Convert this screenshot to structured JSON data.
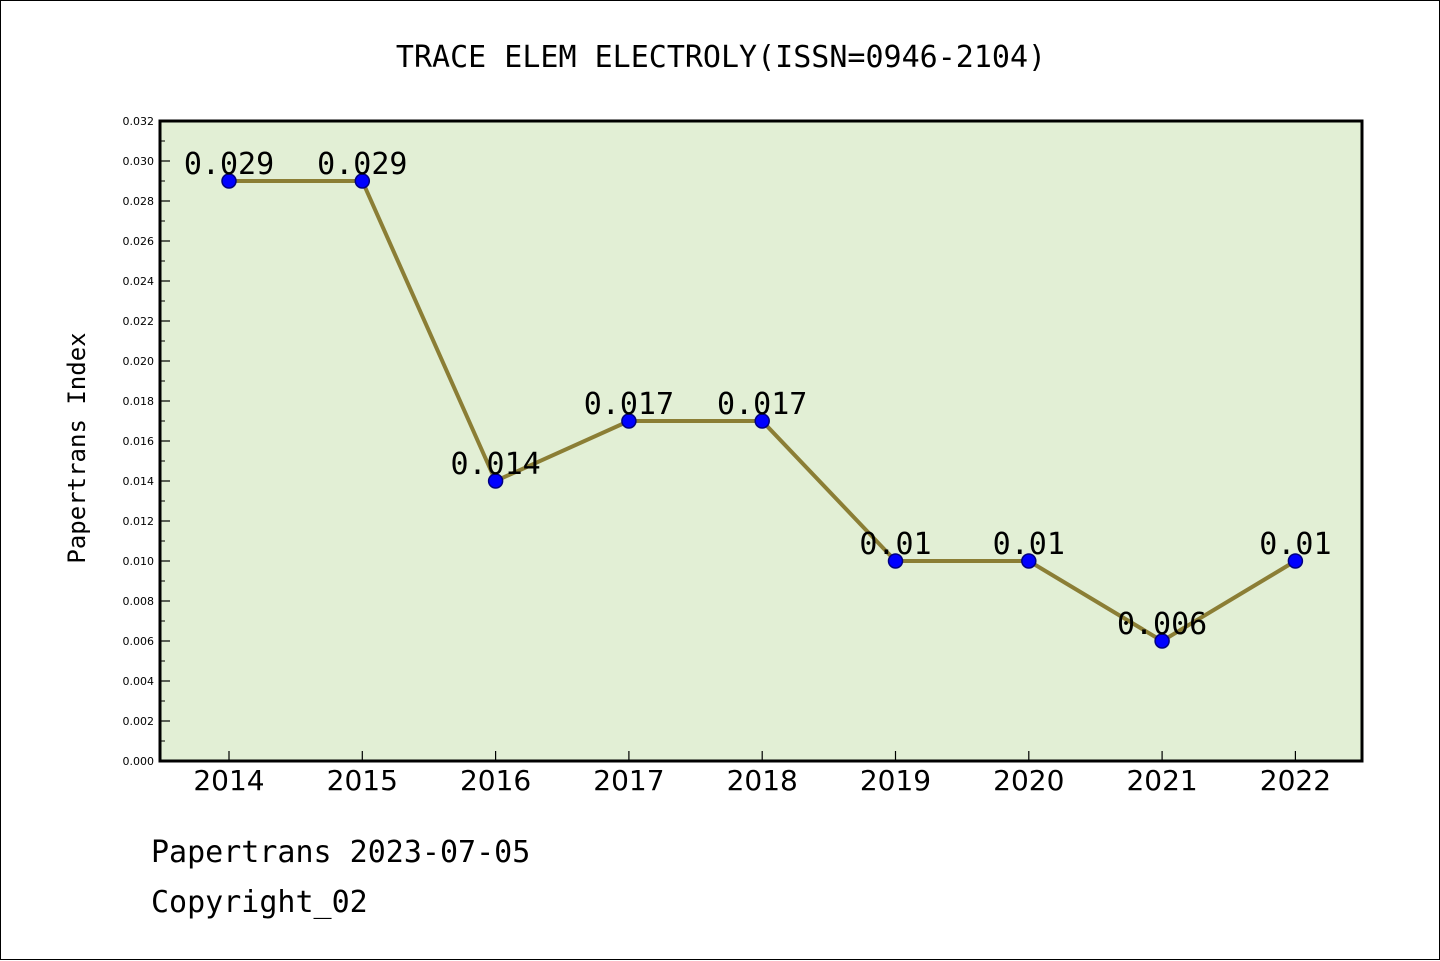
{
  "chart_data": {
    "type": "line",
    "title": "TRACE ELEM ELECTROLY(ISSN=0946-2104)",
    "xlabel": "",
    "ylabel": "Papertrans Index",
    "categories": [
      "2014",
      "2015",
      "2016",
      "2017",
      "2018",
      "2019",
      "2020",
      "2021",
      "2022"
    ],
    "series": [
      {
        "values": [
          0.029,
          0.029,
          0.014,
          0.017,
          0.017,
          0.01,
          0.01,
          0.006,
          0.01
        ],
        "labels": [
          "0.029",
          "0.029",
          "0.014",
          "0.017",
          "0.017",
          "0.01",
          "0.01",
          "0.006",
          "0.01"
        ]
      }
    ],
    "ylim": [
      0,
      0.032
    ],
    "yticks": [
      "0.000",
      "0.002",
      "0.004",
      "0.006",
      "0.008",
      "0.010",
      "0.012",
      "0.014",
      "0.016",
      "0.018",
      "0.020",
      "0.022",
      "0.024",
      "0.026",
      "0.028",
      "0.030",
      "0.032"
    ],
    "grid": false,
    "legend": "none",
    "colors": {
      "plot_background": "#e2efd5",
      "line": "#8b7e35",
      "marker_fill": "#0000ff",
      "marker_edge": "#000080"
    }
  },
  "footer": {
    "line1": "Papertrans 2023-07-05",
    "line2": "Copyright_02"
  }
}
